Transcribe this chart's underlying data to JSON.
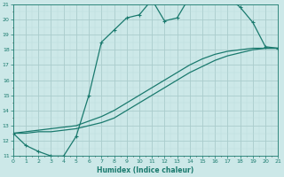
{
  "xlabel": "Humidex (Indice chaleur)",
  "xlim": [
    0,
    21
  ],
  "ylim": [
    11,
    21
  ],
  "yticks": [
    11,
    12,
    13,
    14,
    15,
    16,
    17,
    18,
    19,
    20,
    21
  ],
  "xticks": [
    0,
    1,
    2,
    3,
    4,
    5,
    6,
    7,
    8,
    9,
    10,
    11,
    12,
    13,
    14,
    15,
    16,
    17,
    18,
    19,
    20,
    21
  ],
  "bg_color": "#cce8e8",
  "line_color": "#1a7a6e",
  "grid_major_color": "#aacccc",
  "grid_minor_color": "#bbdddd",
  "line1_x": [
    0,
    1,
    2,
    3,
    4,
    5,
    6,
    7,
    8,
    9,
    10,
    11,
    12,
    13,
    14,
    15,
    16,
    17,
    18,
    19,
    20,
    21
  ],
  "line1_y": [
    12.5,
    11.7,
    11.3,
    11.0,
    11.0,
    12.3,
    15.0,
    18.5,
    19.3,
    20.1,
    20.3,
    21.3,
    19.9,
    20.1,
    21.5,
    21.2,
    21.5,
    21.5,
    20.8,
    19.8,
    18.2,
    18.1
  ],
  "line2_x": [
    0,
    1,
    2,
    3,
    4,
    5,
    6,
    7,
    8,
    9,
    10,
    11,
    12,
    13,
    14,
    15,
    16,
    17,
    18,
    19,
    20,
    21
  ],
  "line2_y": [
    12.5,
    12.6,
    12.7,
    12.8,
    12.9,
    13.0,
    13.3,
    13.6,
    14.0,
    14.5,
    15.0,
    15.5,
    16.0,
    16.5,
    17.0,
    17.4,
    17.7,
    17.9,
    18.0,
    18.1,
    18.1,
    18.1
  ],
  "line3_x": [
    0,
    1,
    2,
    3,
    4,
    5,
    6,
    7,
    8,
    9,
    10,
    11,
    12,
    13,
    14,
    15,
    16,
    17,
    18,
    19,
    20,
    21
  ],
  "line3_y": [
    12.5,
    12.5,
    12.6,
    12.6,
    12.7,
    12.8,
    13.0,
    13.2,
    13.5,
    14.0,
    14.5,
    15.0,
    15.5,
    16.0,
    16.5,
    16.9,
    17.3,
    17.6,
    17.8,
    18.0,
    18.1,
    18.1
  ],
  "marker": "+",
  "lw": 0.9,
  "ms": 2.5
}
